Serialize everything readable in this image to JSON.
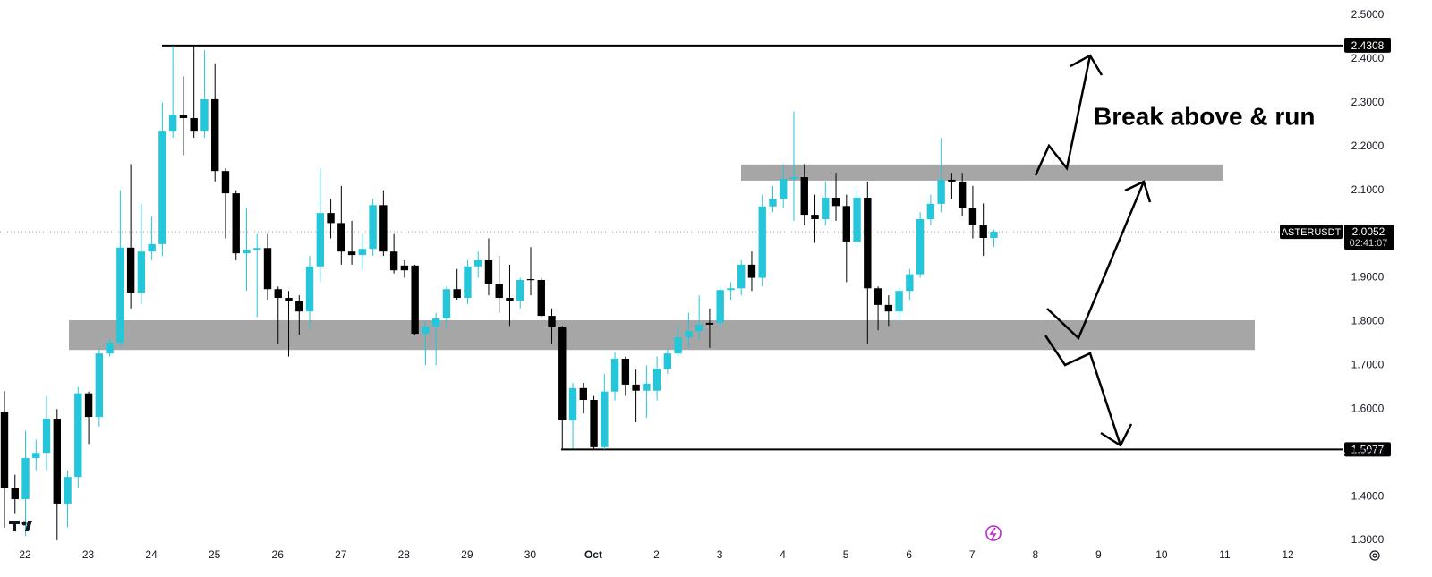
{
  "chart_data": {
    "type": "candlestick",
    "symbol": "ASTERUSDT",
    "countdown": "02:41:07",
    "last": 2.0052,
    "annotation": "Break above & run",
    "up_color": "#26c6da",
    "down_color": "#000000",
    "zone_color": "#a6a6a6",
    "x_labels": [
      "22",
      "23",
      "24",
      "25",
      "26",
      "27",
      "28",
      "29",
      "30",
      "Oct",
      "2",
      "3",
      "4",
      "5",
      "6",
      "7",
      "8",
      "9",
      "10",
      "11",
      "12"
    ],
    "ylim": [
      1.2878,
      2.5348
    ],
    "yticks": [
      {
        "value": 2.5,
        "label": "2.5000"
      },
      {
        "value": 2.4,
        "label": "2.4000"
      },
      {
        "value": 2.3,
        "label": "2.3000"
      },
      {
        "value": 2.2,
        "label": "2.2000"
      },
      {
        "value": 2.1,
        "label": "2.1000"
      },
      {
        "value": 2.0,
        "label": "2.0000"
      },
      {
        "value": 1.9,
        "label": "1.9000"
      },
      {
        "value": 1.8,
        "label": "1.8000"
      },
      {
        "value": 1.7,
        "label": "1.7000"
      },
      {
        "value": 1.6,
        "label": "1.6000"
      },
      {
        "value": 1.5,
        "label": "1.5000"
      },
      {
        "value": 1.4,
        "label": "1.4000"
      },
      {
        "value": 1.3,
        "label": "1.3000"
      }
    ],
    "levels": [
      2.4308,
      1.5077
    ],
    "zones": [
      {
        "low": 2.122,
        "high": 2.159
      },
      {
        "low": 1.735,
        "high": 1.803
      }
    ],
    "candles": {
      "open": [
        1.594,
        1.42,
        1.394,
        1.488,
        1.5,
        1.578,
        1.384,
        1.445,
        1.636,
        1.582,
        1.727,
        1.752,
        1.969,
        1.866,
        1.96,
        1.977,
        2.236,
        2.273,
        2.265,
        2.236,
        2.308,
        2.144,
        2.093,
        1.956,
        1.964,
        1.968,
        1.874,
        1.854,
        1.846,
        1.823,
        1.926,
        2.048,
        2.025,
        1.96,
        1.952,
        1.966,
        2.066,
        1.96,
        1.928,
        1.928,
        1.772,
        1.788,
        1.807,
        1.874,
        1.854,
        1.926,
        1.94,
        1.885,
        1.854,
        1.848,
        1.897,
        1.895,
        1.813,
        1.787,
        1.574,
        1.648,
        1.621,
        1.513,
        1.64,
        1.715,
        1.656,
        1.642,
        1.642,
        1.692,
        1.727,
        1.764,
        1.778,
        1.797,
        1.797,
        1.872,
        1.876,
        1.93,
        1.9,
        2.063,
        2.08,
        2.126,
        2.13,
        2.044,
        2.034,
        2.083,
        2.064,
        1.983,
        2.083,
        1.876,
        1.838,
        1.823,
        1.87,
        1.908,
        2.034,
        2.069,
        2.124,
        2.12,
        2.06,
        2.02,
        1.991
      ],
      "high": [
        1.641,
        1.45,
        1.55,
        1.53,
        1.63,
        1.6,
        1.46,
        1.65,
        1.64,
        1.74,
        1.76,
        2.1,
        2.16,
        2.07,
        2.04,
        2.3,
        2.43,
        2.36,
        2.43,
        2.42,
        2.39,
        2.15,
        2.1,
        2.06,
        2.0,
        2.0,
        1.88,
        1.87,
        1.86,
        1.95,
        2.15,
        2.08,
        2.11,
        2.03,
        2.0,
        2.08,
        2.1,
        2.0,
        1.94,
        1.93,
        1.8,
        1.82,
        1.88,
        1.92,
        1.94,
        1.96,
        1.99,
        1.95,
        1.93,
        1.9,
        1.97,
        1.9,
        1.83,
        1.79,
        1.66,
        1.66,
        1.63,
        1.68,
        1.73,
        1.72,
        1.69,
        1.7,
        1.72,
        1.74,
        1.79,
        1.82,
        1.86,
        1.83,
        1.88,
        1.89,
        1.94,
        1.96,
        2.09,
        2.11,
        2.16,
        2.28,
        2.16,
        2.09,
        2.12,
        2.14,
        2.09,
        2.1,
        2.12,
        1.88,
        1.86,
        1.88,
        1.92,
        2.05,
        2.09,
        2.22,
        2.14,
        2.14,
        2.11,
        2.07,
        2.01
      ],
      "low": [
        1.329,
        1.36,
        1.31,
        1.46,
        1.46,
        1.3,
        1.33,
        1.42,
        1.52,
        1.56,
        1.72,
        1.74,
        1.83,
        1.84,
        1.94,
        1.95,
        2.22,
        2.18,
        2.22,
        2.22,
        2.12,
        1.99,
        1.94,
        1.87,
        1.81,
        1.85,
        1.75,
        1.72,
        1.77,
        1.78,
        1.89,
        1.99,
        1.93,
        1.93,
        1.92,
        1.95,
        1.95,
        1.91,
        1.9,
        1.77,
        1.7,
        1.7,
        1.78,
        1.85,
        1.84,
        1.9,
        1.86,
        1.82,
        1.79,
        1.83,
        1.86,
        1.81,
        1.75,
        1.51,
        1.51,
        1.59,
        1.508,
        1.508,
        1.62,
        1.63,
        1.57,
        1.58,
        1.62,
        1.68,
        1.72,
        1.74,
        1.76,
        1.74,
        1.78,
        1.85,
        1.86,
        1.87,
        1.88,
        2.05,
        2.06,
        2.03,
        2.02,
        1.98,
        2.02,
        2.03,
        1.89,
        1.97,
        1.75,
        1.78,
        1.79,
        1.8,
        1.85,
        1.9,
        2.02,
        2.05,
        2.08,
        2.04,
        1.99,
        1.95,
        1.97
      ],
      "close": [
        1.42,
        1.394,
        1.488,
        1.5,
        1.578,
        1.384,
        1.445,
        1.636,
        1.582,
        1.727,
        1.752,
        1.969,
        1.866,
        1.96,
        1.977,
        2.236,
        2.273,
        2.265,
        2.236,
        2.308,
        2.144,
        2.093,
        1.956,
        1.964,
        1.968,
        1.874,
        1.854,
        1.846,
        1.823,
        1.926,
        2.048,
        2.025,
        1.96,
        1.952,
        1.966,
        2.066,
        1.96,
        1.917,
        1.917,
        1.772,
        1.788,
        1.807,
        1.874,
        1.854,
        1.926,
        1.94,
        1.885,
        1.854,
        1.848,
        1.895,
        1.895,
        1.813,
        1.787,
        1.574,
        1.648,
        1.621,
        1.513,
        1.64,
        1.715,
        1.656,
        1.642,
        1.658,
        1.692,
        1.727,
        1.764,
        1.778,
        1.793,
        1.793,
        1.872,
        1.876,
        1.93,
        1.9,
        2.063,
        2.08,
        2.126,
        2.13,
        2.044,
        2.034,
        2.083,
        2.064,
        1.983,
        2.083,
        1.876,
        1.838,
        1.823,
        1.87,
        1.908,
        2.034,
        2.069,
        2.124,
        2.12,
        2.06,
        2.02,
        1.991,
        2.0052
      ]
    }
  }
}
